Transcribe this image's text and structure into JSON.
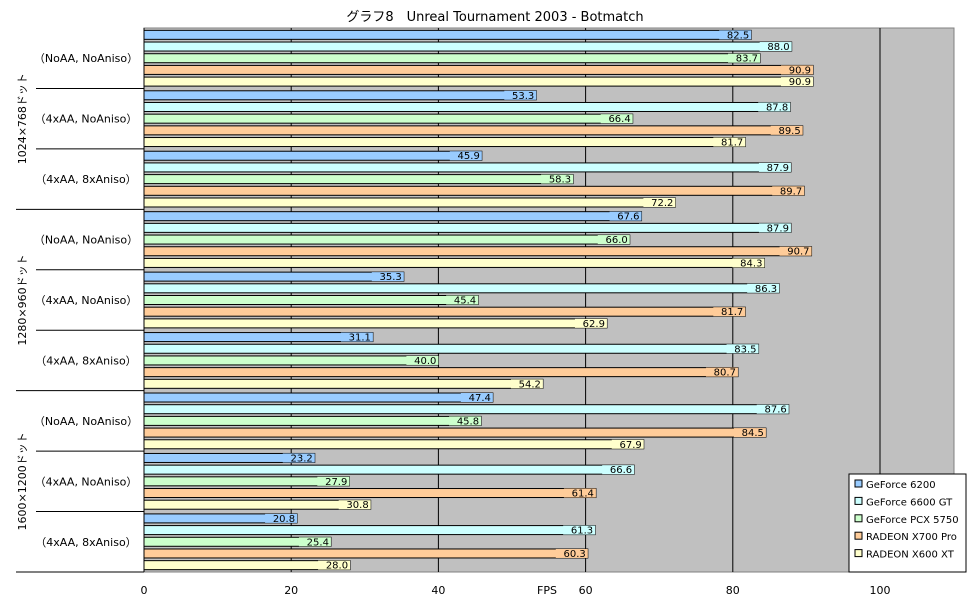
{
  "chart_data": {
    "type": "bar",
    "orientation": "horizontal",
    "title": "グラフ8　Unreal Tournament 2003 - Botmatch",
    "xlabel": "FPS",
    "ylabel": "",
    "xlim": [
      0,
      110
    ],
    "x_ticks": [
      0,
      20,
      40,
      60,
      80,
      100
    ],
    "grid": true,
    "legend_position": "bottom-right",
    "groups": [
      {
        "label": "1024×768ドット",
        "categories": [
          "（NoAA, NoAniso）",
          "（4xAA, NoAniso）",
          "（4xAA, 8xAniso）"
        ]
      },
      {
        "label": "1280×960ドット",
        "categories": [
          "（NoAA, NoAniso）",
          "（4xAA, NoAniso）",
          "（4xAA, 8xAniso）"
        ]
      },
      {
        "label": "1600×1200ドット",
        "categories": [
          "（NoAA, NoAniso）",
          "（4xAA, NoAniso）",
          "（4xAA, 8xAniso）"
        ]
      }
    ],
    "series": [
      {
        "name": "GeForce 6200",
        "color": "#99ccff",
        "values": [
          82.5,
          53.3,
          45.9,
          67.6,
          35.3,
          31.1,
          47.4,
          23.2,
          20.8
        ]
      },
      {
        "name": "GeForce 6600 GT",
        "color": "#ccffff",
        "values": [
          88.0,
          87.8,
          87.9,
          87.9,
          86.3,
          83.5,
          87.6,
          66.6,
          61.3
        ]
      },
      {
        "name": "GeForce PCX 5750",
        "color": "#ccffcc",
        "values": [
          83.7,
          66.4,
          58.3,
          66.0,
          45.4,
          40.0,
          45.8,
          27.9,
          25.4
        ]
      },
      {
        "name": "RADEON X700 Pro",
        "color": "#ffcc99",
        "values": [
          90.9,
          89.5,
          89.7,
          90.7,
          81.7,
          80.7,
          84.5,
          61.4,
          60.3
        ]
      },
      {
        "name": "RADEON X600 XT",
        "color": "#ffffcc",
        "values": [
          90.9,
          81.7,
          72.2,
          84.3,
          62.9,
          54.2,
          67.9,
          30.8,
          28.0
        ]
      }
    ]
  }
}
